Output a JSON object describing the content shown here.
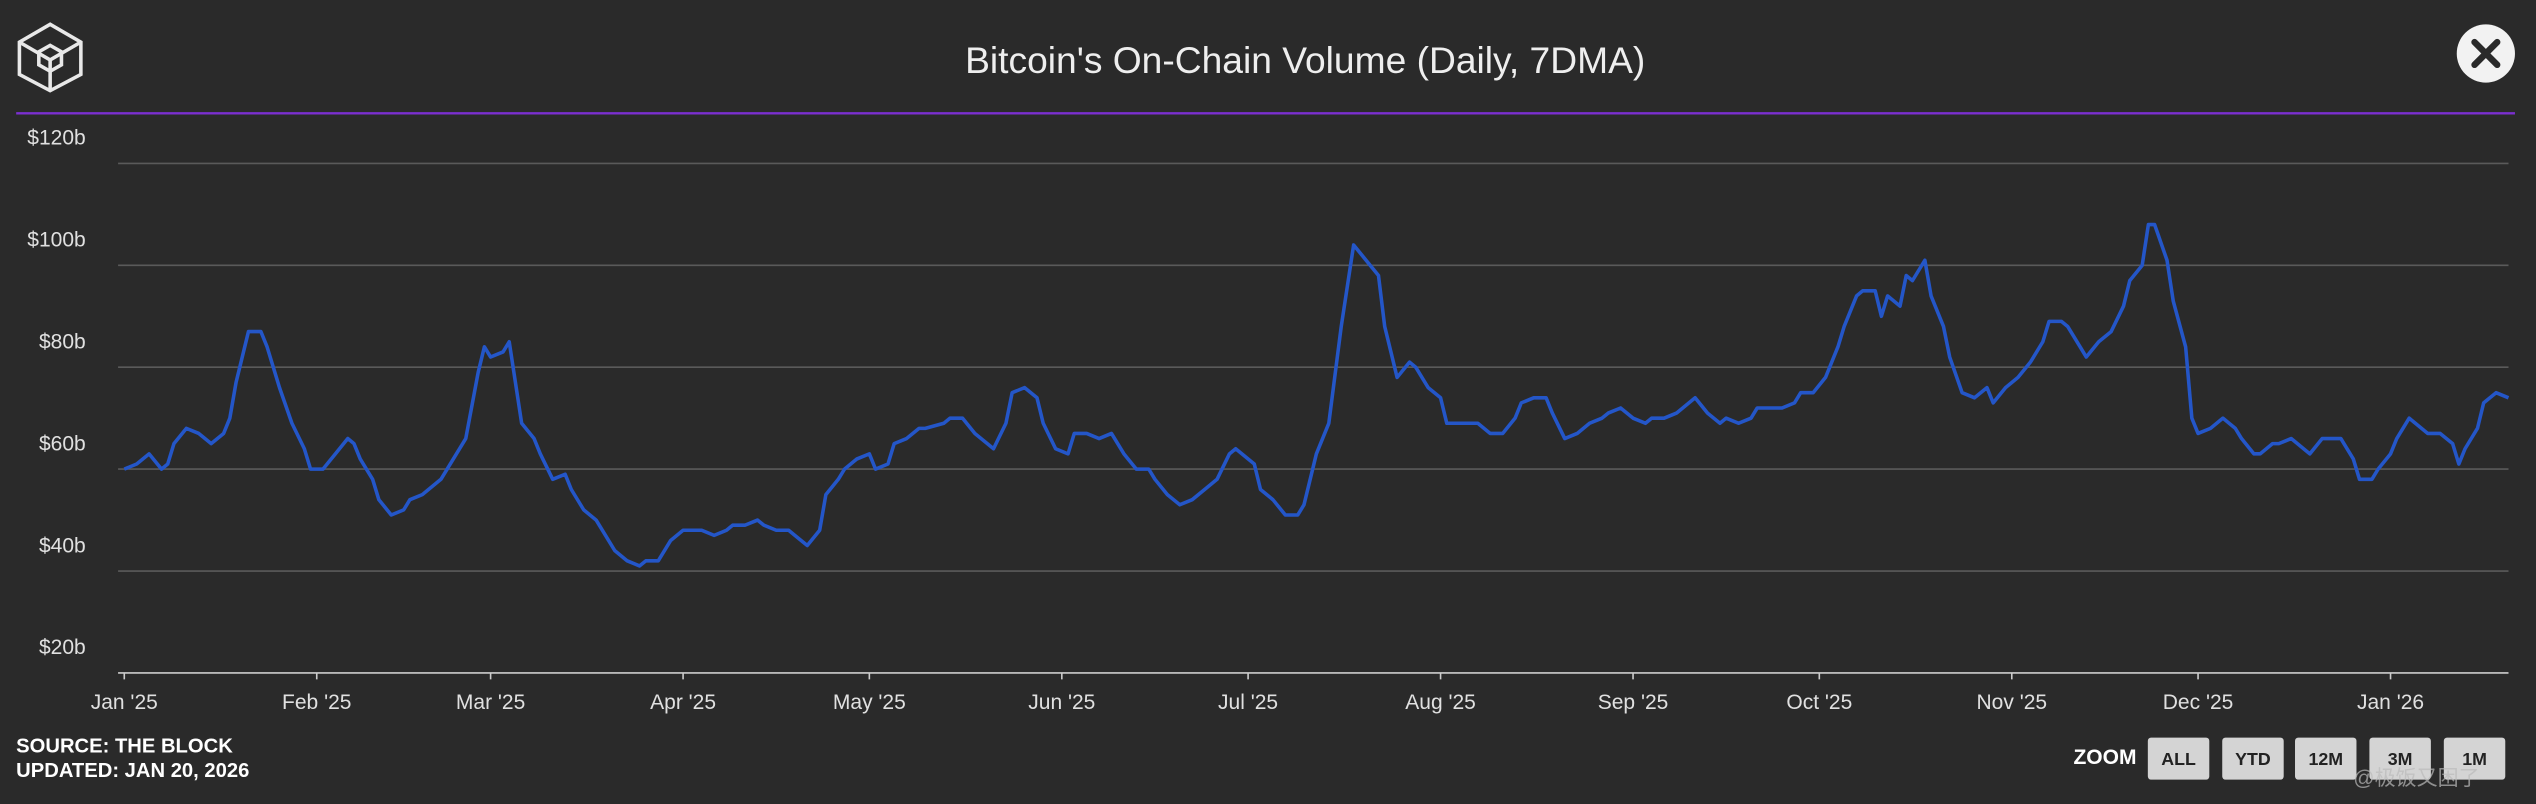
{
  "chart_data": {
    "type": "line",
    "title": "Bitcoin's On-Chain Volume (Daily, 7DMA)",
    "source": "SOURCE: THE BLOCK",
    "updated": "UPDATED: JAN 20, 2026",
    "zoom_label": "ZOOM",
    "zoom_buttons": [
      "ALL",
      "YTD",
      "12M",
      "3M",
      "1M"
    ],
    "watermark": "@极饭又困了",
    "grid": true,
    "xlim": [
      -1,
      384
    ],
    "ylim": [
      20,
      120
    ],
    "yticks": [
      {
        "value": 20,
        "label": "$20b"
      },
      {
        "value": 40,
        "label": "$40b"
      },
      {
        "value": 60,
        "label": "$60b"
      },
      {
        "value": 80,
        "label": "$80b"
      },
      {
        "value": 100,
        "label": "$100b"
      },
      {
        "value": 120,
        "label": "$120b"
      }
    ],
    "xticks": [
      {
        "value": 0,
        "label": "Jan '25"
      },
      {
        "value": 31,
        "label": "Feb '25"
      },
      {
        "value": 59,
        "label": "Mar '25"
      },
      {
        "value": 90,
        "label": "Apr '25"
      },
      {
        "value": 120,
        "label": "May '25"
      },
      {
        "value": 151,
        "label": "Jun '25"
      },
      {
        "value": 181,
        "label": "Jul '25"
      },
      {
        "value": 212,
        "label": "Aug '25"
      },
      {
        "value": 243,
        "label": "Sep '25"
      },
      {
        "value": 273,
        "label": "Oct '25"
      },
      {
        "value": 304,
        "label": "Nov '25"
      },
      {
        "value": 334,
        "label": "Dec '25"
      },
      {
        "value": 365,
        "label": "Jan '26"
      }
    ],
    "x": [
      0,
      2,
      4,
      6,
      7,
      8,
      10,
      12,
      14,
      16,
      17,
      18,
      20,
      22,
      23,
      25,
      27,
      29,
      30,
      32,
      34,
      36,
      37,
      38,
      40,
      41,
      43,
      45,
      46,
      48,
      49,
      51,
      53,
      55,
      57,
      58,
      59,
      61,
      62,
      64,
      66,
      67,
      69,
      71,
      72,
      74,
      76,
      78,
      79,
      81,
      83,
      84,
      86,
      88,
      90,
      91,
      93,
      95,
      97,
      98,
      100,
      102,
      103,
      105,
      107,
      108,
      110,
      112,
      113,
      115,
      116,
      118,
      120,
      121,
      123,
      124,
      126,
      128,
      129,
      132,
      133,
      135,
      137,
      139,
      140,
      142,
      143,
      145,
      147,
      148,
      150,
      152,
      153,
      155,
      157,
      159,
      161,
      163,
      165,
      166,
      168,
      170,
      172,
      174,
      176,
      178,
      179,
      182,
      183,
      185,
      187,
      189,
      190,
      192,
      194,
      196,
      198,
      200,
      202,
      203,
      205,
      207,
      208,
      210,
      212,
      213,
      215,
      217,
      218,
      220,
      222,
      224,
      225,
      227,
      229,
      230,
      232,
      234,
      236,
      238,
      239,
      241,
      243,
      245,
      246,
      248,
      250,
      252,
      253,
      255,
      257,
      258,
      260,
      262,
      263,
      265,
      267,
      269,
      270,
      272,
      274,
      276,
      277,
      279,
      280,
      282,
      283,
      284,
      286,
      287,
      288,
      290,
      291,
      293,
      294,
      296,
      298,
      300,
      301,
      303,
      305,
      307,
      309,
      310,
      312,
      313,
      315,
      316,
      318,
      320,
      322,
      323,
      325,
      326,
      327,
      329,
      330,
      332,
      333,
      334,
      336,
      338,
      340,
      341,
      343,
      344,
      346,
      347,
      349,
      351,
      352,
      354,
      356,
      357,
      359,
      360,
      362,
      363,
      365,
      366,
      368,
      370,
      371,
      373,
      375,
      376,
      377,
      379,
      380,
      382,
      384
    ],
    "series": [
      {
        "name": "On-Chain Volume",
        "color": "#2456c8",
        "values": [
          60,
          61,
          63,
          60,
          61,
          65,
          68,
          67,
          65,
          67,
          70,
          77,
          87,
          87,
          84,
          76,
          69,
          64,
          60,
          60,
          63,
          66,
          65,
          62,
          58,
          54,
          51,
          52,
          54,
          55,
          56,
          58,
          62,
          66,
          79,
          84,
          82,
          83,
          85,
          69,
          66,
          63,
          58,
          59,
          56,
          52,
          50,
          46,
          44,
          42,
          41,
          42,
          42,
          46,
          48,
          48,
          48,
          47,
          48,
          49,
          49,
          50,
          49,
          48,
          48,
          47,
          45,
          48,
          55,
          58,
          60,
          62,
          63,
          60,
          61,
          65,
          66,
          68,
          68,
          69,
          70,
          70,
          67,
          65,
          64,
          69,
          75,
          76,
          74,
          69,
          64,
          63,
          67,
          67,
          66,
          67,
          63,
          60,
          60,
          58,
          55,
          53,
          54,
          56,
          58,
          63,
          64,
          61,
          56,
          54,
          51,
          51,
          53,
          63,
          69,
          88,
          104,
          101,
          98,
          88,
          78,
          81,
          80,
          76,
          74,
          69,
          69,
          69,
          69,
          67,
          67,
          70,
          73,
          74,
          74,
          71,
          66,
          67,
          69,
          70,
          71,
          72,
          70,
          69,
          70,
          70,
          71,
          73,
          74,
          71,
          69,
          70,
          69,
          70,
          72,
          72,
          72,
          73,
          75,
          75,
          78,
          84,
          88,
          94,
          95,
          95,
          90,
          94,
          92,
          98,
          97,
          101,
          94,
          88,
          82,
          75,
          74,
          76,
          73,
          76,
          78,
          81,
          85,
          89,
          89,
          88,
          84,
          82,
          85,
          87,
          92,
          97,
          100,
          108,
          108,
          101,
          93,
          84,
          70,
          67,
          68,
          70,
          68,
          66,
          63,
          63,
          65,
          65,
          66,
          64,
          63,
          66,
          66,
          66,
          62,
          58,
          58,
          60,
          63,
          66,
          70,
          68,
          67,
          67,
          65,
          61,
          64,
          68,
          73,
          75,
          74
        ]
      }
    ]
  }
}
